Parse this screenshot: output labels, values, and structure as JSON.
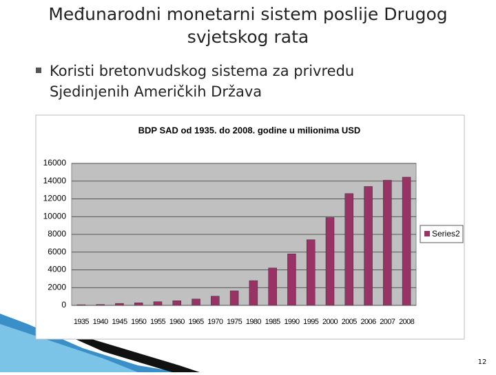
{
  "slide": {
    "title_line1": "Međunarodni monetarni sistem poslije Drugog",
    "title_line2": "svjetskog rata",
    "bullet_line1": "Koristi bretonvudskog sistema za privredu",
    "bullet_line2": "Sjedinjenih Američkih Država",
    "page_number": "12"
  },
  "chart_data": {
    "type": "bar",
    "title": "BDP SAD od 1935. do 2008. godine u milionima USD",
    "categories": [
      "1935",
      "1940",
      "1945",
      "1950",
      "1955",
      "1960",
      "1965",
      "1970",
      "1975",
      "1980",
      "1985",
      "1990",
      "1995",
      "2000",
      "2005",
      "2006",
      "2007",
      "2008"
    ],
    "series": [
      {
        "name": "Series2",
        "color": "#993366",
        "values": [
          73,
          101,
          223,
          294,
          415,
          526,
          719,
          1038,
          1638,
          2788,
          4217,
          5803,
          7397,
          9900,
          12600,
          13400,
          14100,
          14450
        ]
      }
    ],
    "ylim": [
      0,
      16000
    ],
    "yticks": [
      0,
      2000,
      4000,
      6000,
      8000,
      10000,
      12000,
      14000,
      16000
    ],
    "grid": true,
    "legend": "right"
  }
}
